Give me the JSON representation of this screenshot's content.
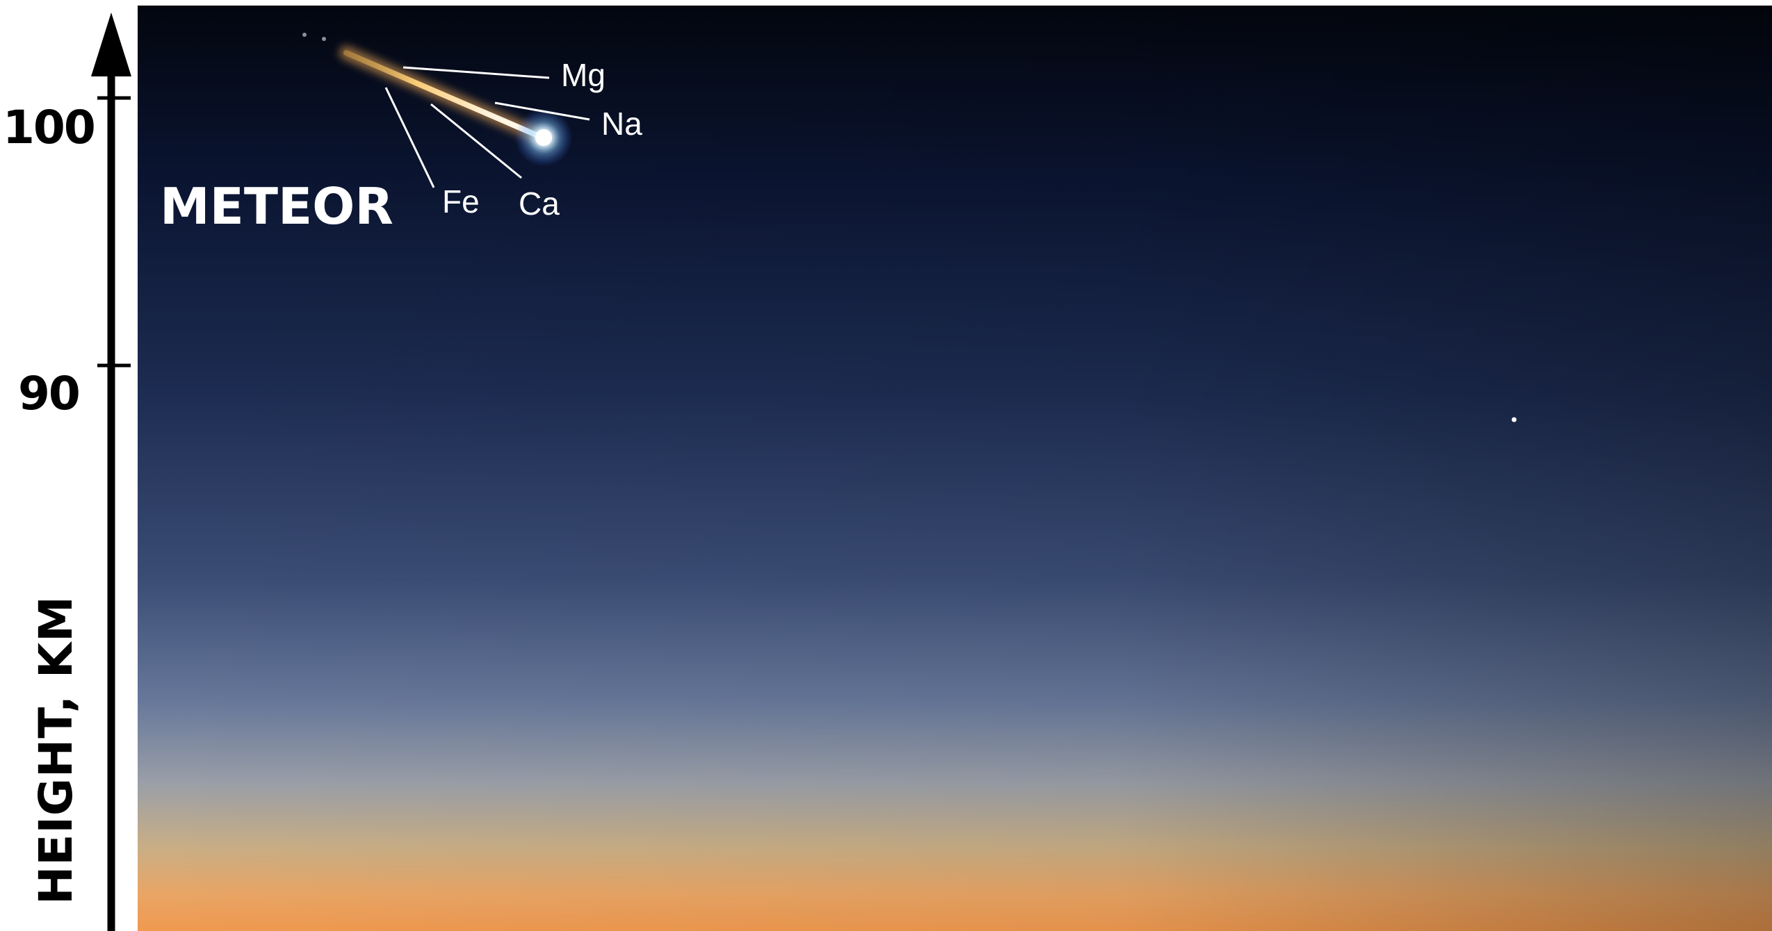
{
  "axis": {
    "title": "HEIGHT, KM",
    "ticks": [
      "100",
      "90"
    ]
  },
  "meteor": {
    "label": "METEOR",
    "elements": [
      "Mg",
      "Na",
      "Fe",
      "Ca"
    ]
  },
  "colors": {
    "sky_top": "#040816",
    "sky_mid": "#1d2c52",
    "sky_low": "#5d6e8f",
    "horizon_glow": "#f3a25a",
    "meteor_head": "#eaf6ff",
    "meteor_trail": "#ffcf7a"
  }
}
